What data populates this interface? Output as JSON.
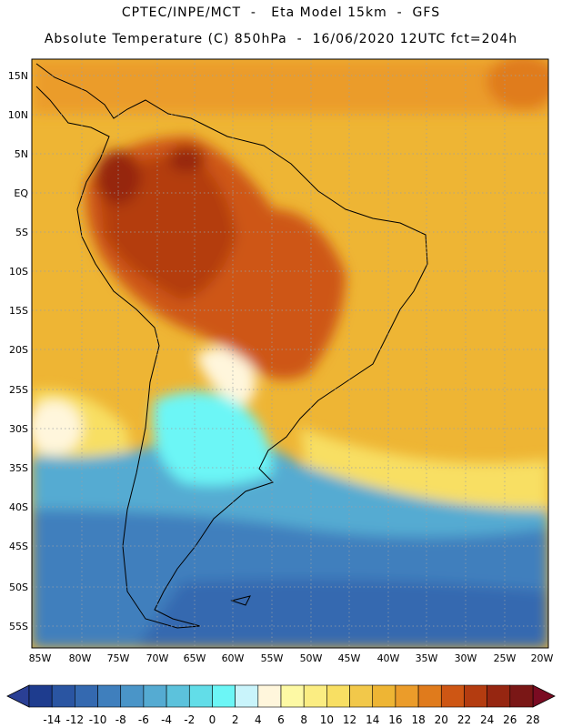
{
  "header": {
    "line1": "CPTEC/INPE/MCT  -   Eta Model 15km  -  GFS",
    "line2": "Absolute Temperature (C) 850hPa  -  16/06/2020 12UTC fct=204h"
  },
  "map": {
    "variable": "Absolute Temperature (C)",
    "level": "850hPa",
    "lat_labels": [
      "15N",
      "10N",
      "5N",
      "EQ",
      "5S",
      "10S",
      "15S",
      "20S",
      "25S",
      "30S",
      "35S",
      "40S",
      "45S",
      "50S",
      "55S"
    ],
    "lon_labels": [
      "85W",
      "80W",
      "75W",
      "70W",
      "65W",
      "60W",
      "55W",
      "50W",
      "45W",
      "40W",
      "35W",
      "30W",
      "25W",
      "20W"
    ]
  },
  "colorbar": {
    "labels": [
      "-14",
      "-12",
      "-10",
      "-8",
      "-6",
      "-4",
      "-2",
      "0",
      "2",
      "4",
      "6",
      "8",
      "10",
      "12",
      "14",
      "16",
      "18",
      "20",
      "22",
      "24",
      "26",
      "28"
    ],
    "low_color": "#2a3f94",
    "high_color": "#7a0b22",
    "colors": [
      "#1e3c8e",
      "#2a55a2",
      "#3469b0",
      "#3f7fbd",
      "#4a95c8",
      "#55abd2",
      "#5cc2dc",
      "#62dde8",
      "#6cf6f6",
      "#c9f4fb",
      "#fff6dc",
      "#fdf9a4",
      "#fbed82",
      "#f8df63",
      "#f2c84a",
      "#eeb534",
      "#eb9c2a",
      "#e07b1c",
      "#ce5614",
      "#b43c10",
      "#962611",
      "#7a1716"
    ]
  }
}
